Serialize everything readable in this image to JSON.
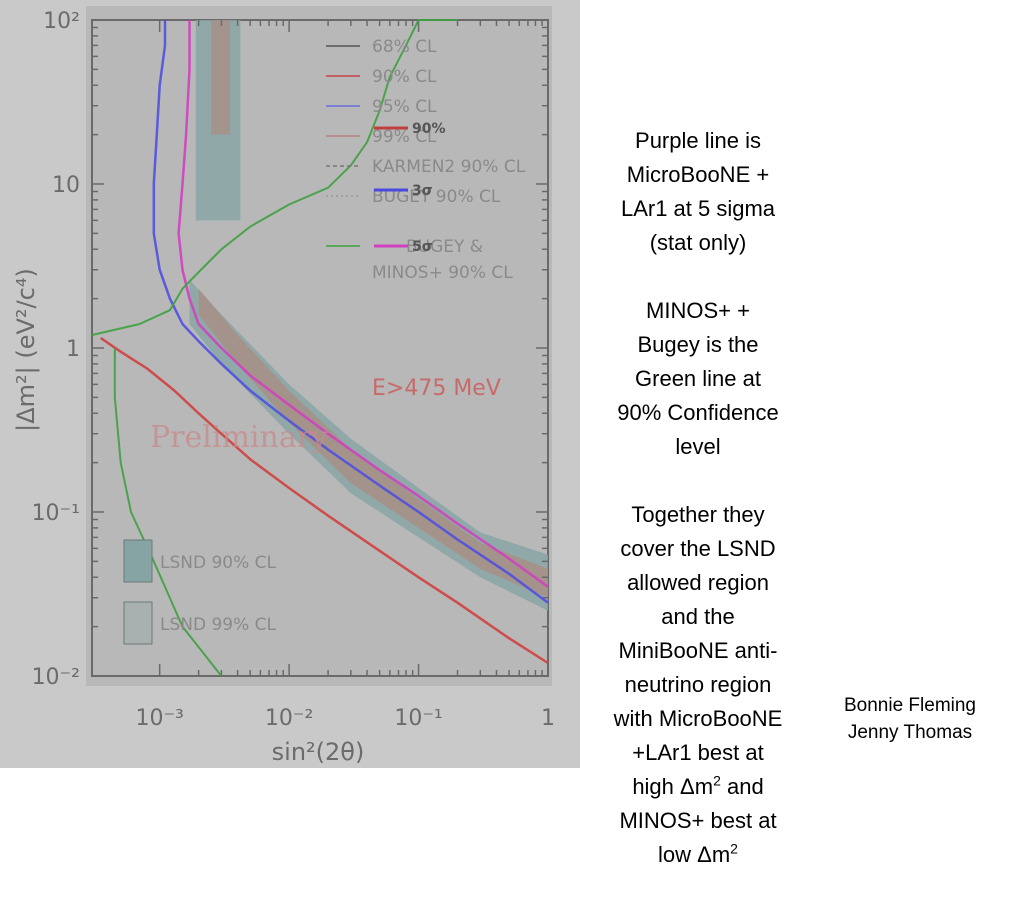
{
  "chart_data": {
    "type": "line",
    "xscale": "log",
    "yscale": "log",
    "xlim": [
      0.0003,
      1
    ],
    "ylim": [
      0.01,
      100
    ],
    "xlabel": "sin²(2θ)",
    "ylabel": "|Δm²| (eV²/c⁴)",
    "xticks": [
      "10⁻³",
      "10⁻²",
      "10⁻¹",
      "1"
    ],
    "yticks": [
      "10⁻²",
      "10⁻¹",
      "1",
      "10",
      "10²"
    ],
    "legend": [
      {
        "label": "68% CL",
        "color": "#555555"
      },
      {
        "label": "90% CL",
        "color": "#c44444"
      },
      {
        "label": "95% CL",
        "color": "#6a6adc"
      },
      {
        "label": "99% CL",
        "color": "#b98080"
      },
      {
        "label": "KARMEN2 90% CL",
        "color": "#777777"
      },
      {
        "label": "BUGEY 90% CL",
        "color": "#999999"
      },
      {
        "label": "BUGEY & MINOS+ 90% CL",
        "color": "#3fa040"
      }
    ],
    "overlay_legend": [
      {
        "label": "90%",
        "color": "#c04040"
      },
      {
        "label": "3σ",
        "color": "#4a4ae0"
      },
      {
        "label": "5σ",
        "color": "#d040c0"
      }
    ],
    "allowed_regions": [
      {
        "label": "LSND 90% CL",
        "color": "#86a4a4"
      },
      {
        "label": "LSND 99% CL",
        "color": "#a8b0b0"
      }
    ],
    "annotations": [
      "E>475 MeV",
      "Preliminary"
    ],
    "series": [
      {
        "name": "90%",
        "color": "#d04040",
        "x": [
          1,
          0.5,
          0.2,
          0.1,
          0.05,
          0.02,
          0.01,
          0.005,
          0.003,
          0.002,
          0.0013,
          0.0008,
          0.0005,
          0.00035
        ],
        "y": [
          0.012,
          0.017,
          0.028,
          0.04,
          0.058,
          0.095,
          0.14,
          0.21,
          0.3,
          0.4,
          0.55,
          0.75,
          0.95,
          1.15
        ]
      },
      {
        "name": "3σ",
        "color": "#5050e0",
        "x": [
          1,
          0.5,
          0.2,
          0.1,
          0.05,
          0.02,
          0.01,
          0.005,
          0.003,
          0.002,
          0.0015,
          0.0012,
          0.001,
          0.0009,
          0.0009,
          0.00095,
          0.001,
          0.0011,
          0.0011
        ],
        "y": [
          0.028,
          0.042,
          0.068,
          0.1,
          0.145,
          0.24,
          0.36,
          0.55,
          0.8,
          1.1,
          1.4,
          2,
          3,
          5,
          10,
          20,
          40,
          70,
          100
        ]
      },
      {
        "name": "5σ",
        "color": "#d040c0",
        "x": [
          1,
          0.5,
          0.2,
          0.1,
          0.05,
          0.02,
          0.01,
          0.005,
          0.003,
          0.002,
          0.0017,
          0.0015,
          0.0014,
          0.0015,
          0.0016,
          0.0017,
          0.0017
        ],
        "y": [
          0.035,
          0.052,
          0.085,
          0.125,
          0.18,
          0.3,
          0.45,
          0.68,
          1.0,
          1.4,
          2,
          3,
          5,
          10,
          20,
          50,
          100
        ]
      },
      {
        "name": "BUGEY & MINOS+ 90% CL",
        "color": "#3fa040",
        "x": [
          0.0003,
          0.0007,
          0.0012,
          0.0015,
          0.002,
          0.003,
          0.005,
          0.01,
          0.02,
          0.03,
          0.04,
          0.05,
          0.06,
          0.08,
          0.1,
          0.2
        ],
        "y": [
          1.2,
          1.4,
          1.7,
          2.3,
          2.9,
          4.0,
          5.5,
          7.5,
          9.5,
          13,
          18,
          28,
          45,
          70,
          100,
          100
        ]
      },
      {
        "name": "MINOS+ 90% CL low Δm²",
        "color": "#3fa040",
        "x": [
          0.00045,
          0.00045,
          0.0005,
          0.0006,
          0.0009,
          0.0015,
          0.003
        ],
        "y": [
          1.0,
          0.5,
          0.2,
          0.1,
          0.05,
          0.02,
          0.01
        ]
      }
    ]
  },
  "notes": {
    "p1": "Purple line is MicroBooNE + LAr1 at 5 sigma (stat only)",
    "p2": "MINOS+ + Bugey is the Green line at 90% Confidence level",
    "p3_part1": "Together they cover the LSND allowed region and the MiniBooNE anti-neutrino region with MicroBooNE +LAr1 best at high ",
    "p3_dm1": "Δm",
    "p3_sup1": "2",
    "p3_part2": " and MINOS+ best at low ",
    "p3_dm2": "Δm",
    "p3_sup2": "2"
  },
  "credits": {
    "line1": "Bonnie Fleming",
    "line2": "Jenny Thomas"
  }
}
